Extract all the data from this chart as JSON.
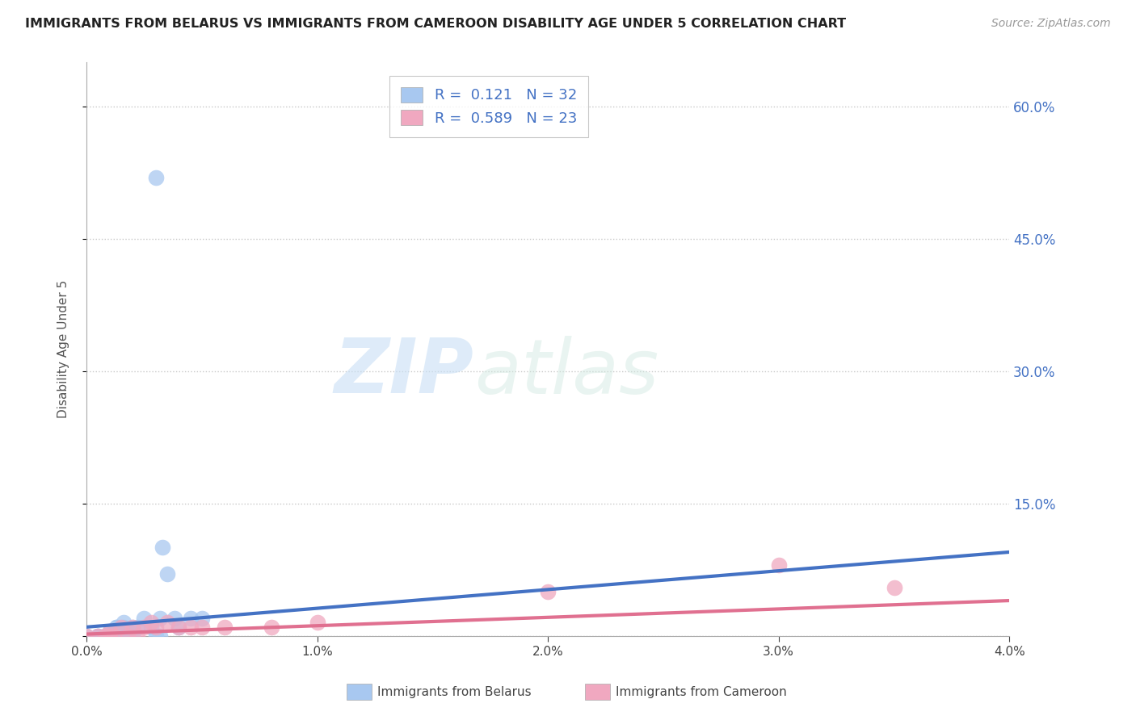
{
  "title": "IMMIGRANTS FROM BELARUS VS IMMIGRANTS FROM CAMEROON DISABILITY AGE UNDER 5 CORRELATION CHART",
  "source": "Source: ZipAtlas.com",
  "xlabel": "",
  "ylabel": "Disability Age Under 5",
  "xlim": [
    0.0,
    0.04
  ],
  "ylim": [
    0.0,
    0.65
  ],
  "yticks": [
    0.0,
    0.15,
    0.3,
    0.45,
    0.6
  ],
  "ytick_labels_right": [
    "",
    "15.0%",
    "30.0%",
    "45.0%",
    "60.0%"
  ],
  "xticks": [
    0.0,
    0.01,
    0.02,
    0.03,
    0.04
  ],
  "xtick_labels": [
    "0.0%",
    "1.0%",
    "2.0%",
    "3.0%",
    "4.0%"
  ],
  "belarus_color": "#a8c8f0",
  "cameroon_color": "#f0a8c0",
  "belarus_line_color": "#4472c4",
  "cameroon_line_color": "#e07090",
  "R_belarus": 0.121,
  "N_belarus": 32,
  "R_cameroon": 0.589,
  "N_cameroon": 23,
  "watermark_zip": "ZIP",
  "watermark_atlas": "atlas",
  "background_color": "#ffffff",
  "grid_color": "#c8c8c8",
  "legend_label_belarus": "Immigrants from Belarus",
  "legend_label_cameroon": "Immigrants from Cameroon",
  "belarus_scatter_x": [
    0.0,
    0.0005,
    0.0005,
    0.0008,
    0.0008,
    0.001,
    0.001,
    0.001,
    0.0012,
    0.0012,
    0.0013,
    0.0013,
    0.0015,
    0.0015,
    0.0016,
    0.0016,
    0.0018,
    0.002,
    0.002,
    0.0022,
    0.0025,
    0.0028,
    0.003,
    0.0032,
    0.0033,
    0.0035,
    0.0038,
    0.004,
    0.0045,
    0.005,
    0.003,
    0.0032
  ],
  "belarus_scatter_y": [
    0.0,
    0.0,
    0.0,
    0.0,
    0.0,
    0.0,
    0.0,
    0.005,
    0.0,
    0.005,
    0.01,
    0.01,
    0.0,
    0.005,
    0.01,
    0.015,
    0.005,
    0.0,
    0.01,
    0.01,
    0.02,
    0.01,
    0.0,
    0.02,
    0.1,
    0.07,
    0.02,
    0.01,
    0.02,
    0.02,
    0.52,
    0.0
  ],
  "cameroon_scatter_x": [
    0.0,
    0.0005,
    0.0008,
    0.001,
    0.001,
    0.0012,
    0.0015,
    0.0018,
    0.002,
    0.0022,
    0.0025,
    0.0028,
    0.003,
    0.0035,
    0.004,
    0.0045,
    0.005,
    0.006,
    0.008,
    0.01,
    0.02,
    0.03,
    0.035
  ],
  "cameroon_scatter_y": [
    0.0,
    0.0,
    0.0,
    0.0,
    0.005,
    0.0,
    0.01,
    0.0,
    0.01,
    0.0,
    0.01,
    0.015,
    0.01,
    0.015,
    0.01,
    0.01,
    0.01,
    0.01,
    0.01,
    0.015,
    0.05,
    0.08,
    0.055
  ],
  "trend_belarus_x0": 0.0,
  "trend_belarus_x1": 0.04,
  "trend_belarus_y0": 0.01,
  "trend_belarus_y1": 0.095,
  "trend_cameroon_x0": 0.0,
  "trend_cameroon_x1": 0.04,
  "trend_cameroon_y0": 0.002,
  "trend_cameroon_y1": 0.04
}
